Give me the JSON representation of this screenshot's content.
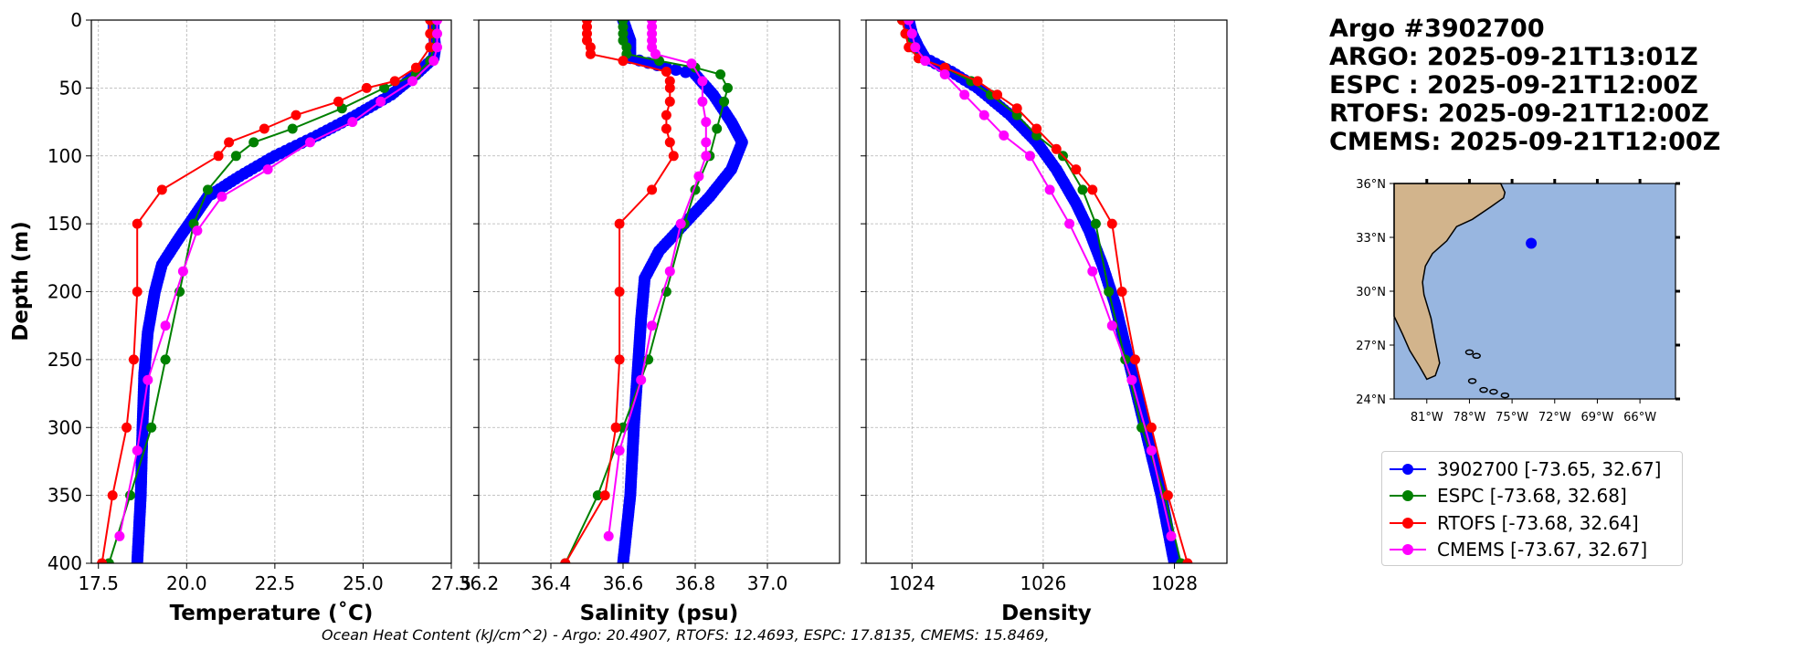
{
  "info": {
    "line1": "Argo #3902700",
    "line2": "ARGO: 2025-09-21T13:01Z",
    "line3": "ESPC : 2025-09-21T12:00Z",
    "line4": "RTOFS: 2025-09-21T12:00Z",
    "line5": "CMEMS: 2025-09-21T12:00Z"
  },
  "legend": [
    {
      "label": "3902700 [-73.65, 32.67]",
      "color": "#0000ff"
    },
    {
      "label": "ESPC [-73.68, 32.68]",
      "color": "#008000"
    },
    {
      "label": "RTOFS [-73.68, 32.64]",
      "color": "#ff0000"
    },
    {
      "label": "CMEMS [-73.67, 32.67]",
      "color": "#ff00ff"
    }
  ],
  "footnote": "Ocean Heat Content (kJ/cm^2) - Argo: 20.4907,  RTOFS: 12.4693,  ESPC: 17.8135,  CMEMS: 15.8469,",
  "map": {
    "lat_labels": [
      "36°N",
      "33°N",
      "30°N",
      "27°N",
      "24°N"
    ],
    "lon_labels": [
      "81°W",
      "78°W",
      "75°W",
      "72°W",
      "69°W",
      "66°W"
    ],
    "lon_range": [
      -83.3,
      -63.5
    ],
    "lat_range": [
      24,
      36
    ],
    "float_position": {
      "lon": -73.65,
      "lat": 32.67
    },
    "land_color": "#d2b48c",
    "ocean_color": "#98b6e0"
  },
  "chart_data": [
    {
      "type": "line",
      "name": "temperature",
      "xlabel": "Temperature (˚C)",
      "ylabel": "Depth (m)",
      "xlim": [
        17.3,
        27.5
      ],
      "ylim": [
        400,
        0
      ],
      "xticks": [
        "17.5",
        "20.0",
        "22.5",
        "25.0",
        "27.5"
      ],
      "yticks": [
        "0",
        "50",
        "100",
        "150",
        "200",
        "250",
        "300",
        "350",
        "400"
      ],
      "grid": true,
      "series": [
        {
          "name": "3902700",
          "color": "#0000ff",
          "dense": true,
          "points": [
            [
              27.0,
              0
            ],
            [
              27.0,
              10
            ],
            [
              27.05,
              20
            ],
            [
              27.0,
              28
            ],
            [
              26.5,
              40
            ],
            [
              25.8,
              55
            ],
            [
              24.8,
              70
            ],
            [
              23.7,
              85
            ],
            [
              22.5,
              100
            ],
            [
              21.5,
              115
            ],
            [
              20.6,
              130
            ],
            [
              20.2,
              145
            ],
            [
              19.8,
              160
            ],
            [
              19.3,
              180
            ],
            [
              19.1,
              200
            ],
            [
              18.9,
              230
            ],
            [
              18.8,
              260
            ],
            [
              18.75,
              300
            ],
            [
              18.7,
              350
            ],
            [
              18.6,
              400
            ]
          ]
        },
        {
          "name": "ESPC",
          "color": "#008000",
          "points": [
            [
              27.0,
              0
            ],
            [
              27.0,
              10
            ],
            [
              27.0,
              20
            ],
            [
              26.9,
              30
            ],
            [
              26.5,
              40
            ],
            [
              25.6,
              50
            ],
            [
              24.4,
              65
            ],
            [
              23.0,
              80
            ],
            [
              21.9,
              90
            ],
            [
              21.4,
              100
            ],
            [
              20.6,
              125
            ],
            [
              20.2,
              150
            ],
            [
              19.8,
              200
            ],
            [
              19.4,
              250
            ],
            [
              19.0,
              300
            ],
            [
              18.4,
              350
            ],
            [
              17.8,
              400
            ]
          ]
        },
        {
          "name": "RTOFS",
          "color": "#ff0000",
          "points": [
            [
              26.9,
              0
            ],
            [
              26.9,
              10
            ],
            [
              26.9,
              20
            ],
            [
              26.5,
              35
            ],
            [
              25.9,
              45
            ],
            [
              25.1,
              50
            ],
            [
              24.3,
              60
            ],
            [
              23.1,
              70
            ],
            [
              22.2,
              80
            ],
            [
              21.2,
              90
            ],
            [
              20.9,
              100
            ],
            [
              19.3,
              125
            ],
            [
              18.6,
              150
            ],
            [
              18.6,
              200
            ],
            [
              18.5,
              250
            ],
            [
              18.3,
              300
            ],
            [
              17.9,
              350
            ],
            [
              17.6,
              400
            ]
          ]
        },
        {
          "name": "CMEMS",
          "color": "#ff00ff",
          "points": [
            [
              27.1,
              0
            ],
            [
              27.1,
              10
            ],
            [
              27.1,
              20
            ],
            [
              27.0,
              30
            ],
            [
              26.4,
              45
            ],
            [
              25.5,
              60
            ],
            [
              24.7,
              75
            ],
            [
              23.5,
              90
            ],
            [
              22.3,
              110
            ],
            [
              21.0,
              130
            ],
            [
              20.3,
              155
            ],
            [
              19.9,
              185
            ],
            [
              19.4,
              225
            ],
            [
              18.9,
              265
            ],
            [
              18.6,
              317
            ],
            [
              18.1,
              380
            ]
          ]
        }
      ]
    },
    {
      "type": "line",
      "name": "salinity",
      "xlabel": "Salinity (psu)",
      "xlim": [
        36.2,
        37.2
      ],
      "ylim": [
        400,
        0
      ],
      "xticks": [
        "36.2",
        "36.4",
        "36.6",
        "36.8",
        "37.0"
      ],
      "grid": true,
      "series": [
        {
          "name": "3902700",
          "color": "#0000ff",
          "dense": true,
          "points": [
            [
              36.6,
              0
            ],
            [
              36.62,
              15
            ],
            [
              36.62,
              28
            ],
            [
              36.72,
              35
            ],
            [
              36.8,
              40
            ],
            [
              36.85,
              55
            ],
            [
              36.9,
              75
            ],
            [
              36.93,
              90
            ],
            [
              36.9,
              110
            ],
            [
              36.84,
              130
            ],
            [
              36.77,
              150
            ],
            [
              36.7,
              170
            ],
            [
              36.66,
              190
            ],
            [
              36.65,
              220
            ],
            [
              36.64,
              260
            ],
            [
              36.63,
              300
            ],
            [
              36.62,
              350
            ],
            [
              36.6,
              400
            ]
          ]
        },
        {
          "name": "ESPC",
          "color": "#008000",
          "points": [
            [
              36.6,
              0
            ],
            [
              36.6,
              5
            ],
            [
              36.6,
              10
            ],
            [
              36.6,
              15
            ],
            [
              36.61,
              20
            ],
            [
              36.61,
              25
            ],
            [
              36.7,
              30
            ],
            [
              36.8,
              35
            ],
            [
              36.87,
              40
            ],
            [
              36.89,
              50
            ],
            [
              36.88,
              60
            ],
            [
              36.86,
              80
            ],
            [
              36.84,
              100
            ],
            [
              36.8,
              125
            ],
            [
              36.77,
              150
            ],
            [
              36.72,
              200
            ],
            [
              36.67,
              250
            ],
            [
              36.6,
              300
            ],
            [
              36.53,
              350
            ],
            [
              36.44,
              400
            ]
          ]
        },
        {
          "name": "RTOFS",
          "color": "#ff0000",
          "points": [
            [
              36.5,
              0
            ],
            [
              36.5,
              5
            ],
            [
              36.5,
              10
            ],
            [
              36.5,
              15
            ],
            [
              36.51,
              20
            ],
            [
              36.51,
              25
            ],
            [
              36.6,
              30
            ],
            [
              36.72,
              38
            ],
            [
              36.73,
              45
            ],
            [
              36.73,
              50
            ],
            [
              36.73,
              60
            ],
            [
              36.72,
              70
            ],
            [
              36.72,
              80
            ],
            [
              36.73,
              90
            ],
            [
              36.74,
              100
            ],
            [
              36.68,
              125
            ],
            [
              36.59,
              150
            ],
            [
              36.59,
              200
            ],
            [
              36.59,
              250
            ],
            [
              36.58,
              300
            ],
            [
              36.55,
              350
            ],
            [
              36.44,
              400
            ]
          ]
        },
        {
          "name": "CMEMS",
          "color": "#ff00ff",
          "points": [
            [
              36.68,
              0
            ],
            [
              36.68,
              5
            ],
            [
              36.68,
              10
            ],
            [
              36.68,
              15
            ],
            [
              36.68,
              20
            ],
            [
              36.69,
              25
            ],
            [
              36.79,
              32
            ],
            [
              36.82,
              45
            ],
            [
              36.82,
              60
            ],
            [
              36.83,
              75
            ],
            [
              36.83,
              90
            ],
            [
              36.83,
              100
            ],
            [
              36.81,
              115
            ],
            [
              36.76,
              150
            ],
            [
              36.73,
              185
            ],
            [
              36.68,
              225
            ],
            [
              36.65,
              265
            ],
            [
              36.59,
              317
            ],
            [
              36.56,
              380
            ]
          ]
        }
      ]
    },
    {
      "type": "line",
      "name": "density",
      "xlabel": "Density",
      "xlim": [
        1023.3,
        1028.8
      ],
      "ylim": [
        400,
        0
      ],
      "xticks": [
        "1024",
        "1026",
        "1028"
      ],
      "grid": true,
      "series": [
        {
          "name": "3902700",
          "color": "#0000ff",
          "dense": true,
          "points": [
            [
              1023.95,
              0
            ],
            [
              1024.0,
              10
            ],
            [
              1024.1,
              20
            ],
            [
              1024.2,
              28
            ],
            [
              1024.6,
              38
            ],
            [
              1025.0,
              50
            ],
            [
              1025.5,
              70
            ],
            [
              1025.9,
              90
            ],
            [
              1026.2,
              110
            ],
            [
              1026.5,
              135
            ],
            [
              1026.7,
              155
            ],
            [
              1026.9,
              180
            ],
            [
              1027.1,
              210
            ],
            [
              1027.3,
              250
            ],
            [
              1027.55,
              300
            ],
            [
              1027.8,
              350
            ],
            [
              1028.0,
              400
            ]
          ]
        },
        {
          "name": "ESPC",
          "color": "#008000",
          "points": [
            [
              1023.85,
              0
            ],
            [
              1023.9,
              10
            ],
            [
              1024.0,
              20
            ],
            [
              1024.1,
              28
            ],
            [
              1024.5,
              35
            ],
            [
              1024.9,
              45
            ],
            [
              1025.2,
              55
            ],
            [
              1025.6,
              70
            ],
            [
              1025.9,
              85
            ],
            [
              1026.3,
              100
            ],
            [
              1026.6,
              125
            ],
            [
              1026.8,
              150
            ],
            [
              1027.0,
              200
            ],
            [
              1027.25,
              250
            ],
            [
              1027.5,
              300
            ],
            [
              1027.85,
              350
            ],
            [
              1028.1,
              400
            ]
          ]
        },
        {
          "name": "RTOFS",
          "color": "#ff0000",
          "points": [
            [
              1023.85,
              0
            ],
            [
              1023.9,
              10
            ],
            [
              1023.95,
              20
            ],
            [
              1024.1,
              28
            ],
            [
              1024.5,
              35
            ],
            [
              1025.0,
              45
            ],
            [
              1025.3,
              55
            ],
            [
              1025.6,
              65
            ],
            [
              1025.9,
              80
            ],
            [
              1026.2,
              95
            ],
            [
              1026.5,
              110
            ],
            [
              1026.75,
              125
            ],
            [
              1027.05,
              150
            ],
            [
              1027.2,
              200
            ],
            [
              1027.4,
              250
            ],
            [
              1027.65,
              300
            ],
            [
              1027.9,
              350
            ],
            [
              1028.2,
              400
            ]
          ]
        },
        {
          "name": "CMEMS",
          "color": "#ff00ff",
          "points": [
            [
              1023.95,
              0
            ],
            [
              1024.0,
              10
            ],
            [
              1024.05,
              20
            ],
            [
              1024.2,
              30
            ],
            [
              1024.5,
              40
            ],
            [
              1024.8,
              55
            ],
            [
              1025.1,
              70
            ],
            [
              1025.4,
              85
            ],
            [
              1025.8,
              100
            ],
            [
              1026.1,
              125
            ],
            [
              1026.4,
              150
            ],
            [
              1026.75,
              185
            ],
            [
              1027.05,
              225
            ],
            [
              1027.35,
              265
            ],
            [
              1027.65,
              317
            ],
            [
              1027.95,
              380
            ]
          ]
        }
      ]
    }
  ]
}
